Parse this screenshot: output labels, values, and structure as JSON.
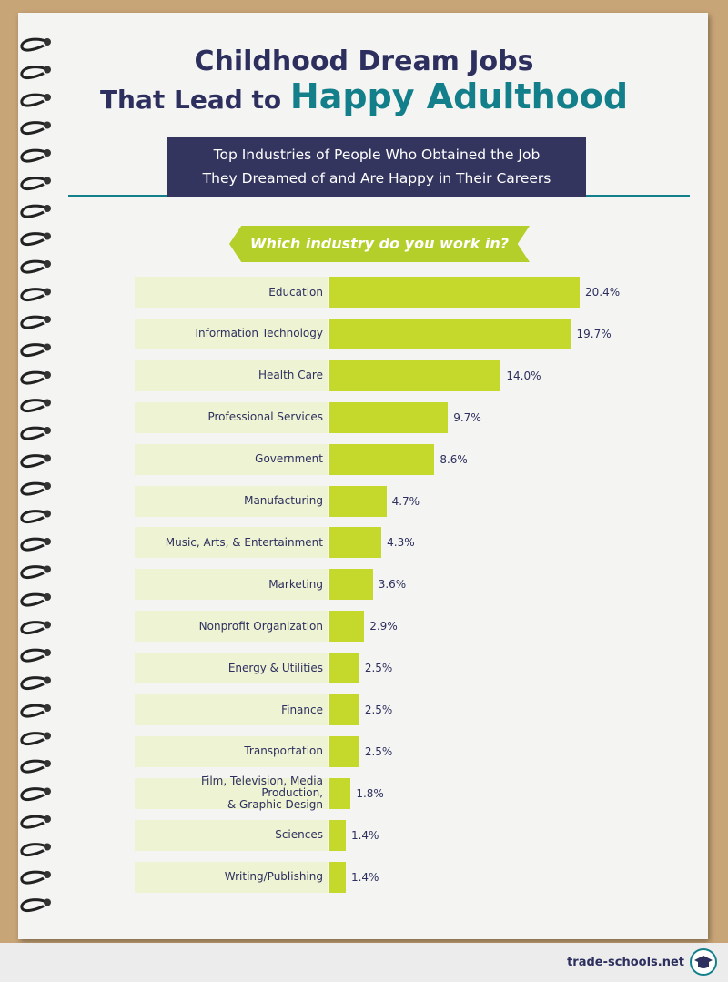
{
  "title_line1": "Childhood Dream Jobs",
  "title_line2_lead": "That Lead to",
  "title_line2_highlight": "Happy Adulthood",
  "subtitle": "Top Industries of People Who Obtained the Job\nThey Dreamed of and Are Happy in Their Careers",
  "footer": "trade-schools.net",
  "chart_data": {
    "type": "bar",
    "orientation": "horizontal",
    "title": "Which industry do you work in?",
    "color": "#c5d92d",
    "categories": [
      "Education",
      "Information Technology",
      "Health Care",
      "Professional Services",
      "Government",
      "Manufacturing",
      "Music, Arts, & Entertainment",
      "Marketing",
      "Nonprofit Organization",
      "Energy & Utilities",
      "Finance",
      "Transportation",
      "Film, Television, Media Production,\n& Graphic Design",
      "Sciences",
      "Writing/Publishing"
    ],
    "values": [
      20.4,
      19.7,
      14.0,
      9.7,
      8.6,
      4.7,
      4.3,
      3.6,
      2.9,
      2.5,
      2.5,
      2.5,
      1.8,
      1.4,
      1.4
    ],
    "value_labels": [
      "20.4%",
      "19.7%",
      "14.0%",
      "9.7%",
      "8.6%",
      "4.7%",
      "4.3%",
      "3.6%",
      "2.9%",
      "2.5%",
      "2.5%",
      "2.5%",
      "1.8%",
      "1.4%",
      "1.4%"
    ]
  }
}
